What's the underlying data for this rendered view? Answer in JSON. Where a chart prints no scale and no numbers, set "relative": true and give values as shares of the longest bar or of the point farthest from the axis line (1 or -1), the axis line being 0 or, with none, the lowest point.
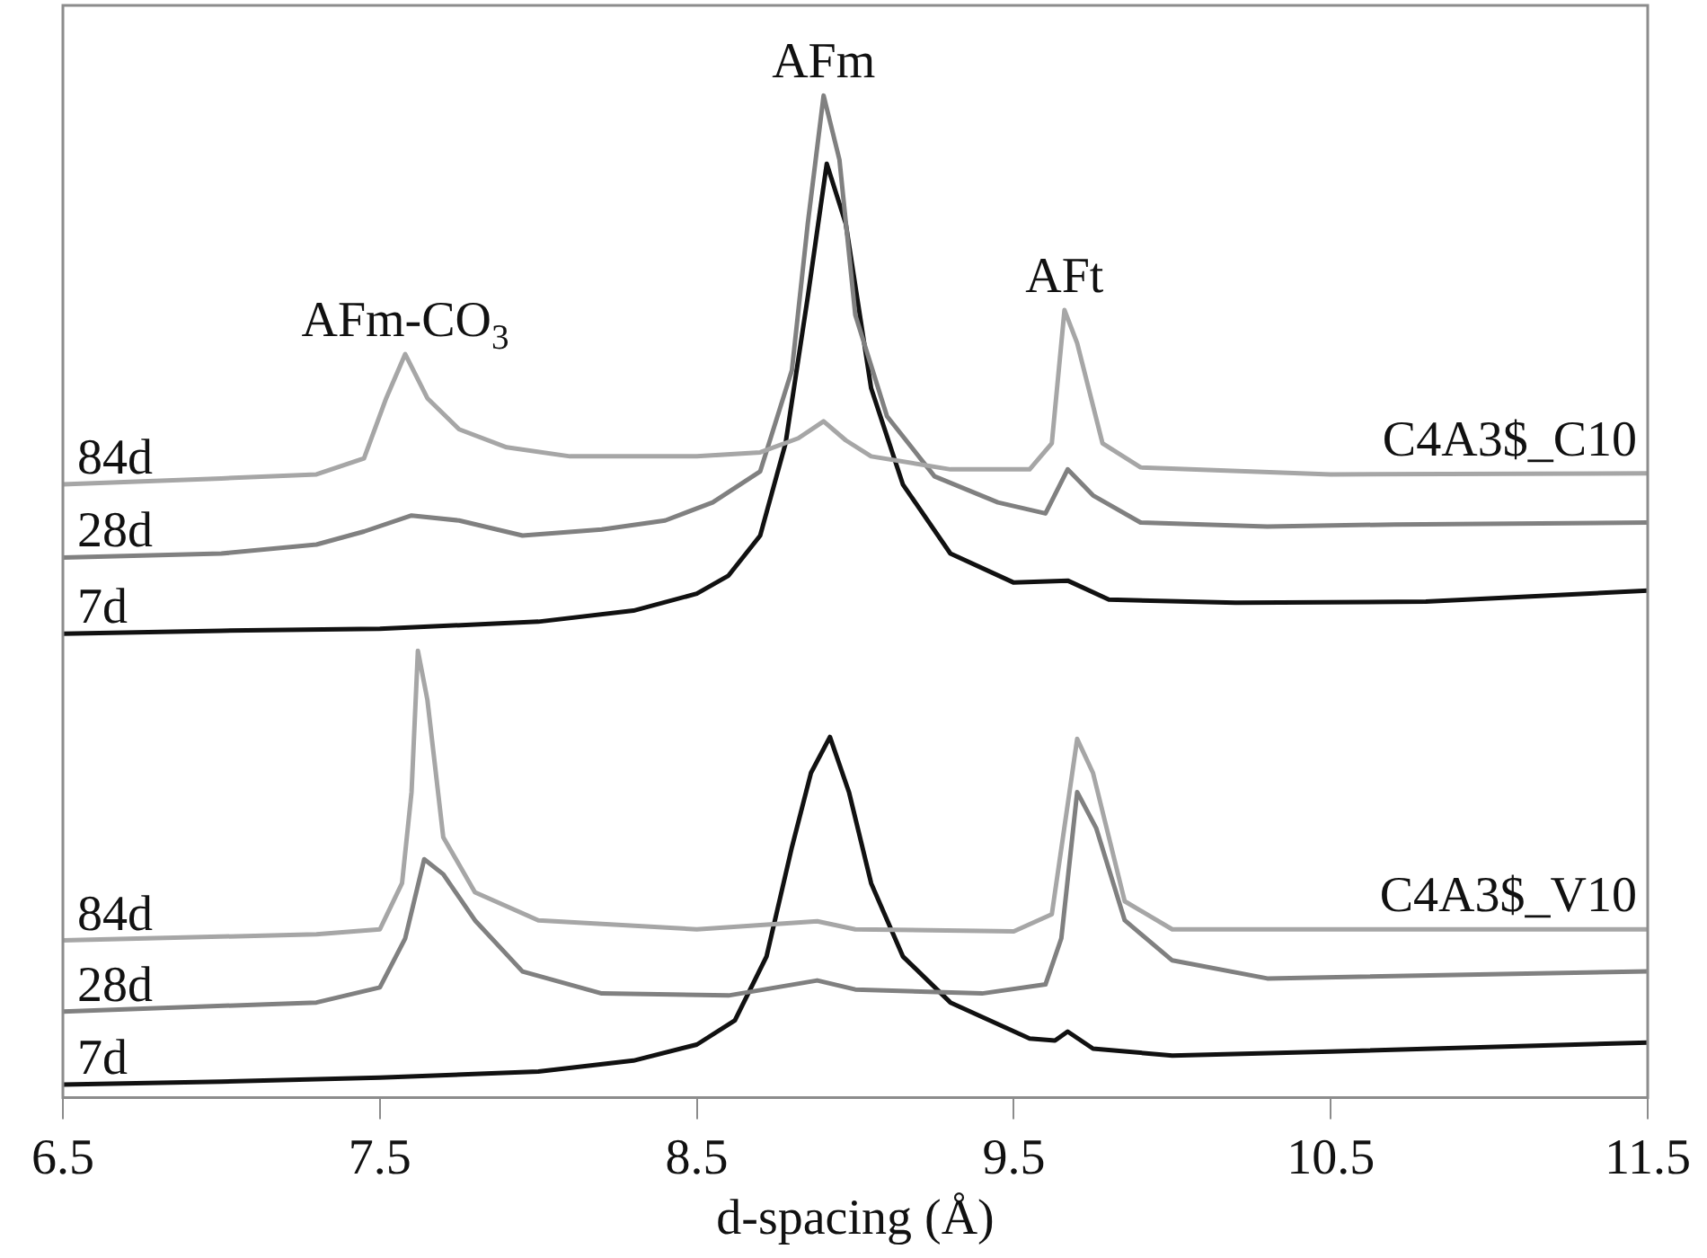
{
  "chart_data": {
    "type": "line",
    "xlabel": "d-spacing (Å)",
    "relative": true,
    "xlim": [
      6.5,
      11.5
    ],
    "xticks": [
      6.5,
      7.5,
      8.5,
      9.5,
      10.5,
      11.5
    ],
    "grid": false,
    "legend": false,
    "marker": "none",
    "line_style": "solid",
    "annotations": [
      {
        "text": "AFm-CO$_{3}$",
        "x": 7.58,
        "y": 0.742
      },
      {
        "text": "AFm",
        "x": 8.9,
        "y": 1.0
      },
      {
        "text": "AFt",
        "x": 9.66,
        "y": 0.786
      },
      "C4A3$_C10",
      "C4A3$_V10"
    ],
    "series": [
      {
        "name": "84d",
        "color": "#a6a6a6",
        "x": [
          6.5,
          7.0,
          7.3,
          7.45,
          7.52,
          7.58,
          7.65,
          7.75,
          7.9,
          8.1,
          8.5,
          8.7,
          8.82,
          8.9,
          8.97,
          9.05,
          9.3,
          9.55,
          9.62,
          9.66,
          9.7,
          9.78,
          9.9,
          10.5,
          11.5
        ],
        "values": [
          0.612,
          0.618,
          0.622,
          0.638,
          0.698,
          0.742,
          0.698,
          0.667,
          0.649,
          0.64,
          0.64,
          0.644,
          0.658,
          0.675,
          0.656,
          0.64,
          0.627,
          0.627,
          0.653,
          0.786,
          0.753,
          0.653,
          0.629,
          0.622,
          0.623
        ]
      },
      {
        "name": "28d",
        "color": "#808080",
        "x": [
          6.5,
          7.0,
          7.3,
          7.45,
          7.6,
          7.75,
          7.95,
          8.2,
          8.4,
          8.55,
          8.7,
          8.8,
          8.85,
          8.9,
          8.95,
          9.0,
          9.1,
          9.25,
          9.45,
          9.6,
          9.67,
          9.75,
          9.9,
          10.3,
          10.7,
          11.5
        ],
        "values": [
          0.539,
          0.543,
          0.552,
          0.565,
          0.581,
          0.576,
          0.561,
          0.567,
          0.576,
          0.594,
          0.625,
          0.726,
          0.872,
          1.0,
          0.936,
          0.781,
          0.68,
          0.62,
          0.594,
          0.583,
          0.627,
          0.601,
          0.574,
          0.57,
          0.572,
          0.574
        ]
      },
      {
        "name": "7d",
        "color": "#111111",
        "x": [
          6.5,
          7.0,
          7.5,
          8.0,
          8.3,
          8.5,
          8.6,
          8.7,
          8.78,
          8.85,
          8.91,
          8.97,
          9.05,
          9.15,
          9.3,
          9.5,
          9.67,
          9.8,
          10.2,
          10.8,
          11.5
        ],
        "values": [
          0.463,
          0.466,
          0.468,
          0.475,
          0.486,
          0.503,
          0.521,
          0.561,
          0.653,
          0.799,
          0.932,
          0.872,
          0.708,
          0.612,
          0.543,
          0.514,
          0.516,
          0.497,
          0.494,
          0.495,
          0.506
        ]
      },
      {
        "name": "84d",
        "color": "#a6a6a6",
        "x": [
          6.5,
          7.3,
          7.5,
          7.57,
          7.6,
          7.62,
          7.65,
          7.7,
          7.8,
          8.0,
          8.5,
          8.88,
          9.0,
          9.5,
          9.62,
          9.7,
          9.75,
          9.85,
          10.0,
          11.5
        ],
        "values": [
          0.157,
          0.163,
          0.168,
          0.214,
          0.305,
          0.446,
          0.397,
          0.26,
          0.205,
          0.177,
          0.168,
          0.176,
          0.168,
          0.166,
          0.183,
          0.358,
          0.324,
          0.196,
          0.168,
          0.168
        ]
      },
      {
        "name": "28d",
        "color": "#808080",
        "x": [
          6.5,
          7.3,
          7.5,
          7.58,
          7.64,
          7.7,
          7.8,
          7.95,
          8.2,
          8.6,
          8.88,
          9.0,
          9.4,
          9.6,
          9.65,
          9.7,
          9.76,
          9.85,
          10.0,
          10.3,
          11.5
        ],
        "values": [
          0.086,
          0.095,
          0.11,
          0.159,
          0.238,
          0.223,
          0.177,
          0.126,
          0.104,
          0.102,
          0.117,
          0.108,
          0.104,
          0.113,
          0.159,
          0.305,
          0.269,
          0.177,
          0.137,
          0.119,
          0.126
        ]
      },
      {
        "name": "7d",
        "color": "#111111",
        "x": [
          6.5,
          7.0,
          7.5,
          8.0,
          8.3,
          8.5,
          8.62,
          8.72,
          8.8,
          8.86,
          8.92,
          8.98,
          9.05,
          9.15,
          9.3,
          9.55,
          9.63,
          9.67,
          9.75,
          10.0,
          10.5,
          11.5
        ],
        "values": [
          0.013,
          0.016,
          0.02,
          0.026,
          0.037,
          0.053,
          0.077,
          0.141,
          0.25,
          0.324,
          0.36,
          0.305,
          0.214,
          0.141,
          0.095,
          0.059,
          0.057,
          0.066,
          0.049,
          0.042,
          0.046,
          0.055
        ]
      }
    ]
  }
}
